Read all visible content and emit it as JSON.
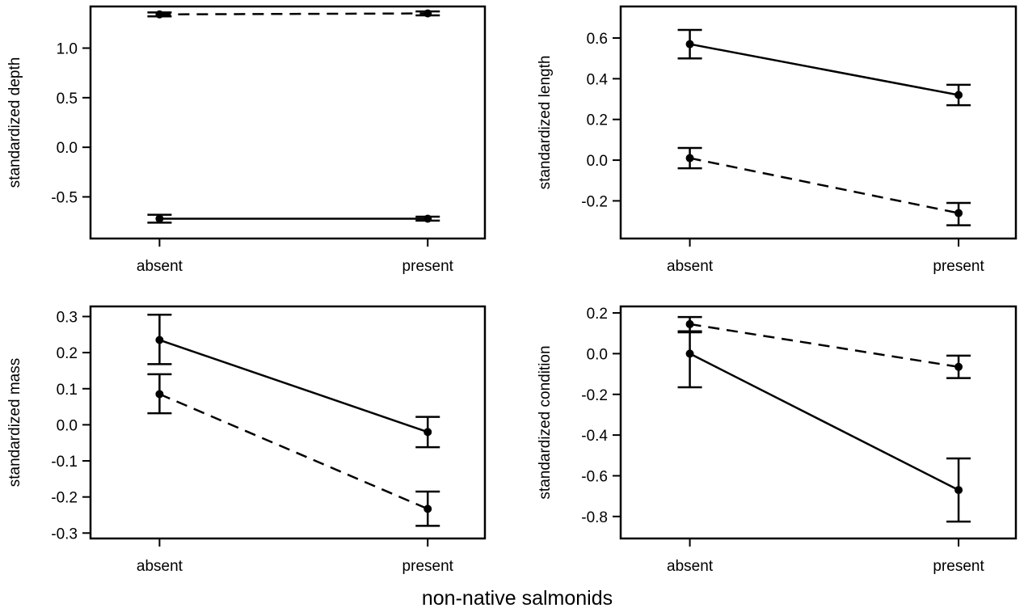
{
  "figure": {
    "xlabel": "non-native salmonids"
  },
  "chart_data": [
    {
      "type": "line",
      "ylabel": "standardized depth",
      "categories": [
        "absent",
        "present"
      ],
      "yticks": [
        -0.5,
        0.0,
        0.5,
        1.0
      ],
      "ytick_labels": [
        "-0.5",
        "0.0",
        "0.5",
        "1.0"
      ],
      "ylim": [
        -0.92,
        1.42
      ],
      "grid": false,
      "series": [
        {
          "style": "solid",
          "values": [
            -0.72,
            -0.72
          ],
          "lower": [
            -0.76,
            -0.74
          ],
          "upper": [
            -0.68,
            -0.7
          ]
        },
        {
          "style": "dashed",
          "values": [
            1.34,
            1.35
          ],
          "lower": [
            1.32,
            1.33
          ],
          "upper": [
            1.36,
            1.37
          ]
        }
      ]
    },
    {
      "type": "line",
      "ylabel": "standardized length",
      "categories": [
        "absent",
        "present"
      ],
      "yticks": [
        -0.2,
        0.0,
        0.2,
        0.4,
        0.6
      ],
      "ytick_labels": [
        "-0.2",
        "0.0",
        "0.2",
        "0.4",
        "0.6"
      ],
      "ylim": [
        -0.385,
        0.755
      ],
      "grid": false,
      "series": [
        {
          "style": "solid",
          "values": [
            0.57,
            0.32
          ],
          "lower": [
            0.5,
            0.27
          ],
          "upper": [
            0.64,
            0.37
          ]
        },
        {
          "style": "dashed",
          "values": [
            0.01,
            -0.26
          ],
          "lower": [
            -0.04,
            -0.32
          ],
          "upper": [
            0.06,
            -0.21
          ]
        }
      ]
    },
    {
      "type": "line",
      "ylabel": "standardized mass",
      "categories": [
        "absent",
        "present"
      ],
      "yticks": [
        -0.3,
        -0.2,
        -0.1,
        0.0,
        0.1,
        0.2,
        0.3
      ],
      "ytick_labels": [
        "-0.3",
        "-0.2",
        "-0.1",
        "0.0",
        "0.1",
        "0.2",
        "0.3"
      ],
      "ylim": [
        -0.315,
        0.328
      ],
      "grid": false,
      "series": [
        {
          "style": "solid",
          "values": [
            0.235,
            -0.02
          ],
          "lower": [
            0.168,
            -0.062
          ],
          "upper": [
            0.305,
            0.022
          ]
        },
        {
          "style": "dashed",
          "values": [
            0.085,
            -0.233
          ],
          "lower": [
            0.032,
            -0.28
          ],
          "upper": [
            0.14,
            -0.185
          ]
        }
      ]
    },
    {
      "type": "line",
      "ylabel": "standardized condition",
      "categories": [
        "absent",
        "present"
      ],
      "yticks": [
        -0.8,
        -0.6,
        -0.4,
        -0.2,
        0.0,
        0.2
      ],
      "ytick_labels": [
        "-0.8",
        "-0.6",
        "-0.4",
        "-0.2",
        "0.0",
        "0.2"
      ],
      "ylim": [
        -0.908,
        0.232
      ],
      "grid": false,
      "series": [
        {
          "style": "solid",
          "values": [
            0.0,
            -0.67
          ],
          "lower": [
            -0.165,
            -0.825
          ],
          "upper": [
            0.105,
            -0.515
          ]
        },
        {
          "style": "dashed",
          "values": [
            0.145,
            -0.065
          ],
          "lower": [
            0.11,
            -0.12
          ],
          "upper": [
            0.18,
            -0.01
          ]
        }
      ]
    }
  ]
}
